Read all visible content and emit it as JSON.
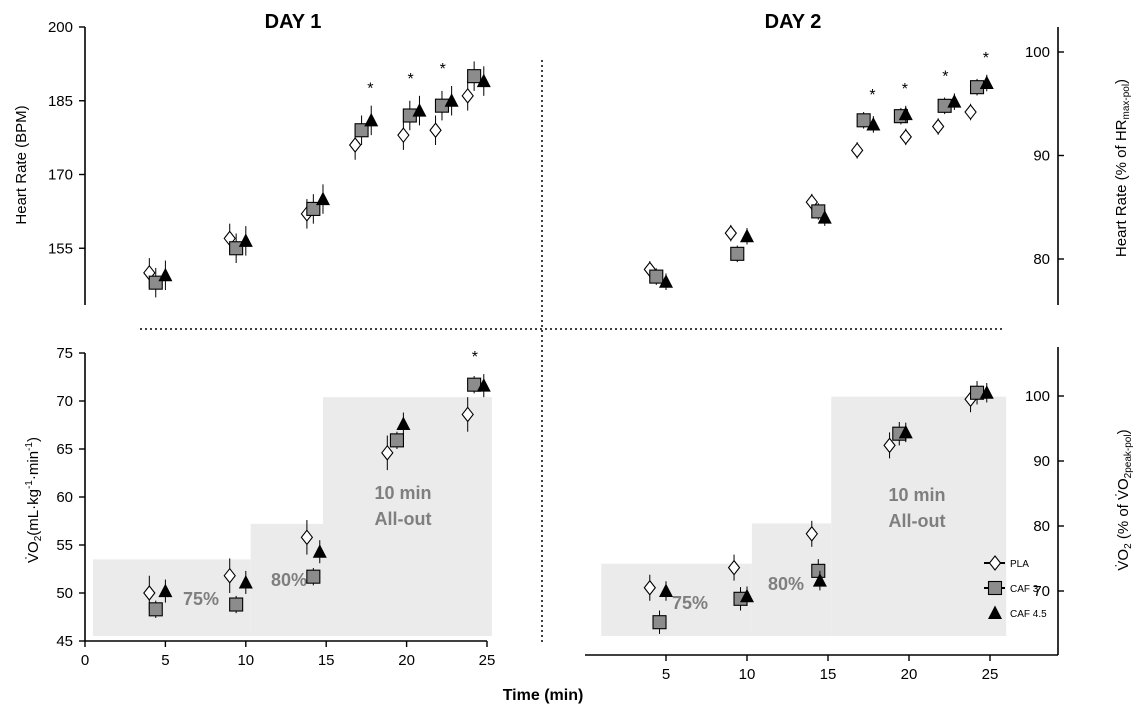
{
  "figure": {
    "panel_titles": [
      "DAY 1",
      "DAY 2"
    ],
    "x_axis_label": "Time (min)",
    "stage_labels": {
      "stage1": "75%",
      "stage2": "80%",
      "stage3_line1": "10 min",
      "stage3_line2": "All-out"
    },
    "significance_marker": "*",
    "colors": {
      "axis": "#000000",
      "shaded_region": "#ebebeb",
      "stage_text": "#7f7f7f",
      "caf3_fill": "#8c8c8c",
      "caf45_fill": "#000000",
      "pla_fill": "#ffffff"
    }
  },
  "chart_data": [
    {
      "type": "scatter",
      "panel": "top-left",
      "title": "DAY 1",
      "ylabel": "Heart Rate (BPM)",
      "xlim": [
        0,
        25
      ],
      "ylim": [
        140,
        200
      ],
      "xticks": [
        0,
        5,
        10,
        15,
        20,
        25
      ],
      "yticks": [
        155,
        170,
        185,
        200
      ],
      "grid": false,
      "significance_x": [
        17.5,
        20,
        22
      ],
      "series": [
        {
          "name": "PLA",
          "marker": "diamond-open",
          "x": [
            4,
            9,
            13.8,
            16.8,
            19.8,
            21.8,
            23.8
          ],
          "y": [
            150,
            157,
            162,
            176,
            178,
            179,
            186
          ],
          "err": [
            3,
            3,
            3,
            3,
            3,
            3,
            3
          ]
        },
        {
          "name": "CAF 3",
          "marker": "square-grey",
          "x": [
            4.4,
            9.4,
            14.2,
            17.2,
            20.2,
            22.2,
            24.2
          ],
          "y": [
            148,
            155,
            163,
            179,
            182,
            184,
            190
          ],
          "err": [
            3,
            3,
            3,
            3,
            3,
            3,
            3
          ]
        },
        {
          "name": "CAF 4.5",
          "marker": "triangle-black",
          "x": [
            5,
            10,
            14.8,
            17.8,
            20.8,
            22.8,
            24.8
          ],
          "y": [
            149.5,
            156.5,
            165,
            181,
            183,
            185,
            189
          ],
          "err": [
            3,
            3,
            3,
            3,
            3,
            3,
            3
          ]
        }
      ]
    },
    {
      "type": "scatter",
      "panel": "top-right",
      "title": "DAY 2",
      "ylabel": "Heart Rate (% of HRmax-pol)",
      "ylabel_main": "Heart Rate (% of HR",
      "ylabel_sub": "max-pol",
      "ylabel_end": ")",
      "xlim": [
        0,
        25
      ],
      "ylim": [
        75,
        103
      ],
      "yticks": [
        80,
        90,
        100
      ],
      "grid": false,
      "significance_x": [
        17.5,
        19.5,
        22,
        24.5
      ],
      "series": [
        {
          "name": "PLA",
          "marker": "diamond-open",
          "x": [
            4,
            9,
            14,
            16.8,
            19.8,
            21.8,
            23.8
          ],
          "y": [
            79,
            82.5,
            85.5,
            90.5,
            91.8,
            92.8,
            94.2
          ],
          "err": [
            0.8,
            0.8,
            0.8,
            0.8,
            0.8,
            0.8,
            0.8
          ]
        },
        {
          "name": "CAF 3",
          "marker": "square-grey",
          "x": [
            4.4,
            9.4,
            14.4,
            17.2,
            19.5,
            22.2,
            24.2
          ],
          "y": [
            78.3,
            80.5,
            84.6,
            93.4,
            93.8,
            94.8,
            96.6
          ],
          "err": [
            0.8,
            0.8,
            0.8,
            0.8,
            0.8,
            0.8,
            0.8
          ]
        },
        {
          "name": "CAF 4.5",
          "marker": "triangle-black",
          "x": [
            5,
            10,
            14.8,
            17.8,
            19.8,
            22.8,
            24.8
          ],
          "y": [
            77.8,
            82.2,
            84,
            93,
            94,
            95.2,
            97
          ],
          "err": [
            0.8,
            0.8,
            0.8,
            0.8,
            0.8,
            0.8,
            0.8
          ]
        }
      ]
    },
    {
      "type": "scatter",
      "panel": "bottom-left",
      "ylabel": "V̇O2(mL·kg-1·min-1)",
      "xlabel": "Time (min)",
      "xlim": [
        0,
        25
      ],
      "ylim": [
        45,
        75
      ],
      "xticks": [
        0,
        5,
        10,
        15,
        20,
        25
      ],
      "yticks": [
        45,
        50,
        55,
        60,
        65,
        70,
        75
      ],
      "grid": false,
      "significance_x": [
        24
      ],
      "background_stages": [
        {
          "x": [
            0.5,
            10.3
          ],
          "y": 53.5,
          "label": "75%"
        },
        {
          "x": [
            10.3,
            14.8
          ],
          "y": 57.2,
          "label": "80%"
        },
        {
          "x": [
            14.8,
            25.3
          ],
          "y": 70.4,
          "label": "10 min All-out"
        }
      ],
      "series": [
        {
          "name": "PLA",
          "marker": "diamond-open",
          "x": [
            4,
            9,
            13.8,
            18.8,
            23.8
          ],
          "y": [
            50,
            51.8,
            55.8,
            64.6,
            68.6
          ],
          "err": [
            1.8,
            1.8,
            1.8,
            1.8,
            1.8
          ]
        },
        {
          "name": "CAF 3",
          "marker": "square-grey",
          "x": [
            4.4,
            9.4,
            14.2,
            19.4,
            24.2
          ],
          "y": [
            48.3,
            48.8,
            51.7,
            65.9,
            71.7
          ],
          "err": [
            0.9,
            0.9,
            0.9,
            0.9,
            0.9
          ]
        },
        {
          "name": "CAF 4.5",
          "marker": "triangle-black",
          "x": [
            5,
            10,
            14.6,
            19.8,
            24.8
          ],
          "y": [
            50.2,
            51.1,
            54.3,
            67.6,
            71.6
          ],
          "err": [
            1.2,
            1.2,
            1.2,
            1.2,
            1.2
          ]
        }
      ]
    },
    {
      "type": "scatter",
      "panel": "bottom-right",
      "ylabel": "V̇O2 (% of V̇O2peak-pol)",
      "xlabel": "Time (min)",
      "xlim": [
        0,
        25
      ],
      "ylim": [
        62,
        108
      ],
      "xticks": [
        5,
        10,
        15,
        20,
        25
      ],
      "yticks": [
        70,
        80,
        90,
        100
      ],
      "grid": false,
      "background_stages": [
        {
          "x": [
            1,
            10.3
          ],
          "y": 74.2,
          "label": "75%"
        },
        {
          "x": [
            10.3,
            15.2
          ],
          "y": 80.4,
          "label": "80%"
        },
        {
          "x": [
            15.2,
            26
          ],
          "y": 99.9,
          "label": "10 min All-out"
        }
      ],
      "legend": {
        "position": "right",
        "entries": [
          "PLA",
          "CAF 3",
          "CAF 4.5"
        ]
      },
      "series": [
        {
          "name": "PLA",
          "marker": "diamond-open",
          "x": [
            4,
            9.2,
            14,
            18.8,
            23.8
          ],
          "y": [
            70.5,
            73.6,
            78.8,
            92.4,
            99.5
          ],
          "err": [
            2,
            2,
            2,
            2,
            2
          ]
        },
        {
          "name": "CAF 3",
          "marker": "square-grey",
          "x": [
            4.6,
            9.6,
            14.4,
            19.4,
            24.2
          ],
          "y": [
            65.2,
            68.8,
            73.1,
            94.2,
            100.5
          ],
          "err": [
            1.8,
            1.8,
            1.8,
            1.8,
            1.8
          ]
        },
        {
          "name": "CAF 4.5",
          "marker": "triangle-black",
          "x": [
            5,
            10,
            14.5,
            19.8,
            24.8
          ],
          "y": [
            70,
            69.2,
            71.6,
            94.4,
            100.5
          ],
          "err": [
            1.5,
            1.5,
            1.5,
            1.5,
            1.5
          ]
        }
      ]
    }
  ]
}
